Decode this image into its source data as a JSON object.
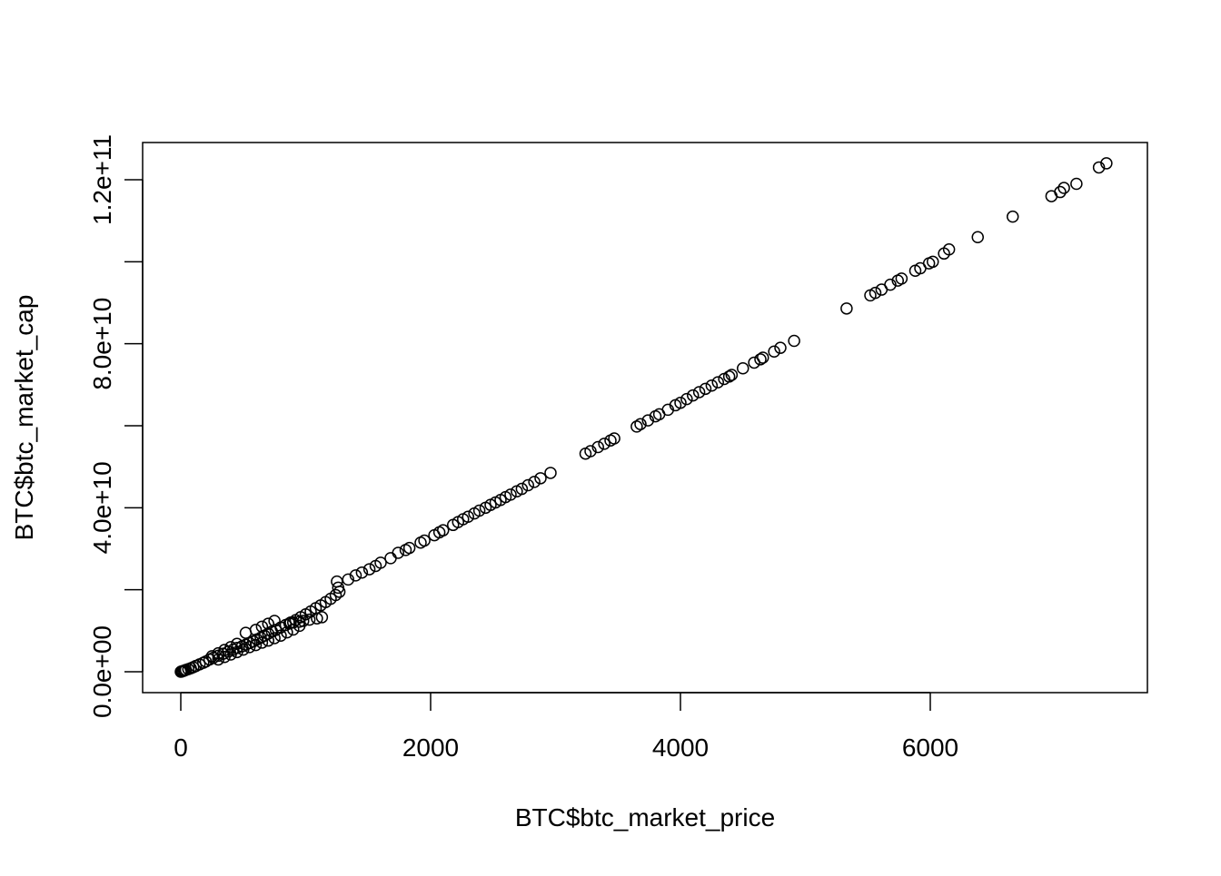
{
  "chart_data": {
    "type": "scatter",
    "title": "",
    "xlabel": "BTC$btc_market_price",
    "ylabel": "BTC$btc_market_cap",
    "xlim": [
      0,
      7500
    ],
    "ylim": [
      0,
      125000000000
    ],
    "grid": false,
    "legend": "none",
    "marker": "open-circle",
    "color": "#000000",
    "x_ticks": [
      {
        "value": 0,
        "label": "0"
      },
      {
        "value": 2000,
        "label": "2000"
      },
      {
        "value": 4000,
        "label": "4000"
      },
      {
        "value": 6000,
        "label": "6000"
      }
    ],
    "y_ticks": [
      {
        "value": 0,
        "label": "0.0e+00"
      },
      {
        "value": 20000000000,
        "label": ""
      },
      {
        "value": 40000000000,
        "label": "4.0e+10"
      },
      {
        "value": 60000000000,
        "label": ""
      },
      {
        "value": 80000000000,
        "label": "8.0e+10"
      },
      {
        "value": 100000000000,
        "label": ""
      },
      {
        "value": 120000000000,
        "label": "1.2e+11"
      }
    ],
    "series": [
      {
        "points": [
          [
            0,
            0
          ],
          [
            5,
            50000000.0
          ],
          [
            10,
            100000000.0
          ],
          [
            20,
            200000000.0
          ],
          [
            30,
            300000000.0
          ],
          [
            40,
            450000000.0
          ],
          [
            60,
            650000000.0
          ],
          [
            80,
            850000000.0
          ],
          [
            100,
            1100000000.0
          ],
          [
            120,
            1400000000.0
          ],
          [
            150,
            1800000000.0
          ],
          [
            180,
            2200000000.0
          ],
          [
            200,
            2500000000.0
          ],
          [
            230,
            3000000000.0
          ],
          [
            260,
            3400000000.0
          ],
          [
            300,
            3900000000.0
          ],
          [
            340,
            4400000000.0
          ],
          [
            380,
            4900000000.0
          ],
          [
            420,
            5400000000.0
          ],
          [
            450,
            5800000000.0
          ],
          [
            490,
            6200000000.0
          ],
          [
            520,
            6600000000.0
          ],
          [
            550,
            7000000000.0
          ],
          [
            580,
            7400000000.0
          ],
          [
            610,
            7900000000.0
          ],
          [
            640,
            8300000000.0
          ],
          [
            670,
            8800000000.0
          ],
          [
            700,
            9300000000.0
          ],
          [
            730,
            9800000000.0
          ],
          [
            760,
            10200000000.0
          ],
          [
            800,
            10800000000.0
          ],
          [
            840,
            11400000000.0
          ],
          [
            880,
            12000000000.0
          ],
          [
            920,
            12600000000.0
          ],
          [
            960,
            13300000000.0
          ],
          [
            1000,
            14000000000.0
          ],
          [
            1040,
            14700000000.0
          ],
          [
            1080,
            15500000000.0
          ],
          [
            1120,
            16200000000.0
          ],
          [
            1160,
            17000000000.0
          ],
          [
            1200,
            17800000000.0
          ],
          [
            1240,
            18700000000.0
          ],
          [
            1270,
            19500000000.0
          ],
          [
            1260,
            20500000000.0
          ],
          [
            1250,
            22000000000.0
          ],
          [
            300,
            3000000000.0
          ],
          [
            350,
            3600000000.0
          ],
          [
            400,
            4200000000.0
          ],
          [
            450,
            4800000000.0
          ],
          [
            500,
            5400000000.0
          ],
          [
            550,
            6000000000.0
          ],
          [
            600,
            6500000000.0
          ],
          [
            650,
            7100000000.0
          ],
          [
            700,
            7600000000.0
          ],
          [
            750,
            8200000000.0
          ],
          [
            800,
            8800000000.0
          ],
          [
            850,
            9600000000.0
          ],
          [
            900,
            10300000000.0
          ],
          [
            950,
            11200000000.0
          ],
          [
            250,
            3800000000.0
          ],
          [
            300,
            4500000000.0
          ],
          [
            350,
            5300000000.0
          ],
          [
            400,
            6000000000.0
          ],
          [
            450,
            6800000000.0
          ],
          [
            520,
            9500000000.0
          ],
          [
            600,
            10200000000.0
          ],
          [
            650,
            11000000000.0
          ],
          [
            700,
            11700000000.0
          ],
          [
            750,
            12400000000.0
          ],
          [
            870,
            11800000000.0
          ],
          [
            900,
            12000000000.0
          ],
          [
            950,
            12200000000.0
          ],
          [
            980,
            12400000000.0
          ],
          [
            1030,
            12700000000.0
          ],
          [
            1090,
            13000000000.0
          ],
          [
            1130,
            13300000000.0
          ],
          [
            1340,
            22500000000.0
          ],
          [
            1400,
            23500000000.0
          ],
          [
            1450,
            24200000000.0
          ],
          [
            1510,
            25000000000.0
          ],
          [
            1560,
            25800000000.0
          ],
          [
            1600,
            26600000000.0
          ],
          [
            1680,
            27700000000.0
          ],
          [
            1740,
            29000000000.0
          ],
          [
            1800,
            29700000000.0
          ],
          [
            1830,
            30200000000.0
          ],
          [
            1920,
            31500000000.0
          ],
          [
            1950,
            32000000000.0
          ],
          [
            2030,
            33300000000.0
          ],
          [
            2070,
            34000000000.0
          ],
          [
            2100,
            34500000000.0
          ],
          [
            2180,
            35800000000.0
          ],
          [
            2220,
            36500000000.0
          ],
          [
            2260,
            37200000000.0
          ],
          [
            2300,
            37800000000.0
          ],
          [
            2350,
            38600000000.0
          ],
          [
            2390,
            39300000000.0
          ],
          [
            2440,
            40000000000.0
          ],
          [
            2480,
            40700000000.0
          ],
          [
            2520,
            41300000000.0
          ],
          [
            2560,
            41900000000.0
          ],
          [
            2600,
            42600000000.0
          ],
          [
            2640,
            43200000000.0
          ],
          [
            2690,
            44000000000.0
          ],
          [
            2730,
            44600000000.0
          ],
          [
            2780,
            45500000000.0
          ],
          [
            2830,
            46300000000.0
          ],
          [
            2880,
            47200000000.0
          ],
          [
            2960,
            48500000000.0
          ],
          [
            3240,
            53200000000.0
          ],
          [
            3280,
            53800000000.0
          ],
          [
            3340,
            54800000000.0
          ],
          [
            3390,
            55600000000.0
          ],
          [
            3440,
            56400000000.0
          ],
          [
            3470,
            56900000000.0
          ],
          [
            3650,
            59800000000.0
          ],
          [
            3680,
            60400000000.0
          ],
          [
            3740,
            61300000000.0
          ],
          [
            3800,
            62300000000.0
          ],
          [
            3830,
            62800000000.0
          ],
          [
            3900,
            63900000000.0
          ],
          [
            3960,
            65000000000.0
          ],
          [
            4000,
            65600000000.0
          ],
          [
            4050,
            66500000000.0
          ],
          [
            4100,
            67400000000.0
          ],
          [
            4150,
            68200000000.0
          ],
          [
            4200,
            69000000000.0
          ],
          [
            4250,
            69800000000.0
          ],
          [
            4300,
            70600000000.0
          ],
          [
            4350,
            71400000000.0
          ],
          [
            4390,
            72000000000.0
          ],
          [
            4410,
            72400000000.0
          ],
          [
            4500,
            74000000000.0
          ],
          [
            4590,
            75400000000.0
          ],
          [
            4640,
            76200000000.0
          ],
          [
            4660,
            76600000000.0
          ],
          [
            4750,
            78100000000.0
          ],
          [
            4800,
            79000000000.0
          ],
          [
            4910,
            80700000000.0
          ],
          [
            5330,
            88600000000.0
          ],
          [
            5520,
            91800000000.0
          ],
          [
            5560,
            92400000000.0
          ],
          [
            5610,
            93200000000.0
          ],
          [
            5680,
            94400000000.0
          ],
          [
            5740,
            95400000000.0
          ],
          [
            5770,
            95900000000.0
          ],
          [
            5880,
            97800000000.0
          ],
          [
            5920,
            98400000000.0
          ],
          [
            5990,
            99600000000.0
          ],
          [
            6020,
            100000000000.0
          ],
          [
            6110,
            102000000000.0
          ],
          [
            6150,
            103000000000.0
          ],
          [
            6380,
            106000000000.0
          ],
          [
            6660,
            111000000000.0
          ],
          [
            6970,
            116000000000.0
          ],
          [
            7040,
            117000000000.0
          ],
          [
            7070,
            118000000000.0
          ],
          [
            7170,
            119000000000.0
          ],
          [
            7350,
            123000000000.0
          ],
          [
            7410,
            124000000000.0
          ]
        ]
      }
    ]
  }
}
